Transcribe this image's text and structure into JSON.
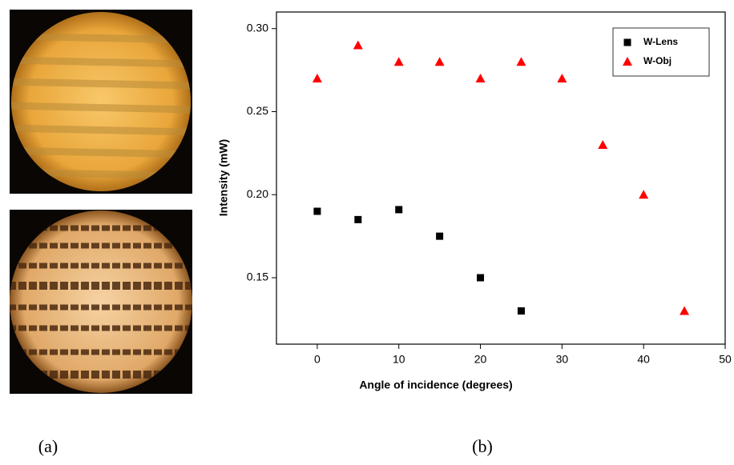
{
  "figure": {
    "panel_labels": [
      "(a)",
      "(b)"
    ]
  },
  "chart_data": {
    "type": "scatter",
    "x_label": "Angle of incidence (degrees)",
    "y_label": "Intensity (mW)",
    "xlim": [
      -5,
      50
    ],
    "xticks": [
      0,
      10,
      20,
      30,
      40,
      50
    ],
    "ylim": [
      0.11,
      0.31
    ],
    "yticks": [
      0.15,
      {
        "value": 0.2,
        "label": "0.20"
      },
      0.25,
      {
        "value": 0.3,
        "label": "0.30"
      }
    ],
    "legend": "upper right",
    "series": [
      {
        "name": "W-Lens",
        "color": "#000000",
        "marker": "square",
        "x": [
          0,
          5,
          10,
          15,
          20,
          25
        ],
        "values": [
          0.19,
          0.185,
          0.191,
          0.175,
          0.15,
          0.13
        ]
      },
      {
        "name": "W-Obj",
        "color": "#ff0000",
        "marker": "triangle",
        "x": [
          0,
          5,
          10,
          15,
          20,
          25,
          30,
          35,
          40,
          45
        ],
        "values": [
          0.27,
          0.29,
          0.28,
          0.28,
          0.27,
          0.28,
          0.27,
          0.23,
          0.2,
          0.13
        ]
      }
    ]
  }
}
